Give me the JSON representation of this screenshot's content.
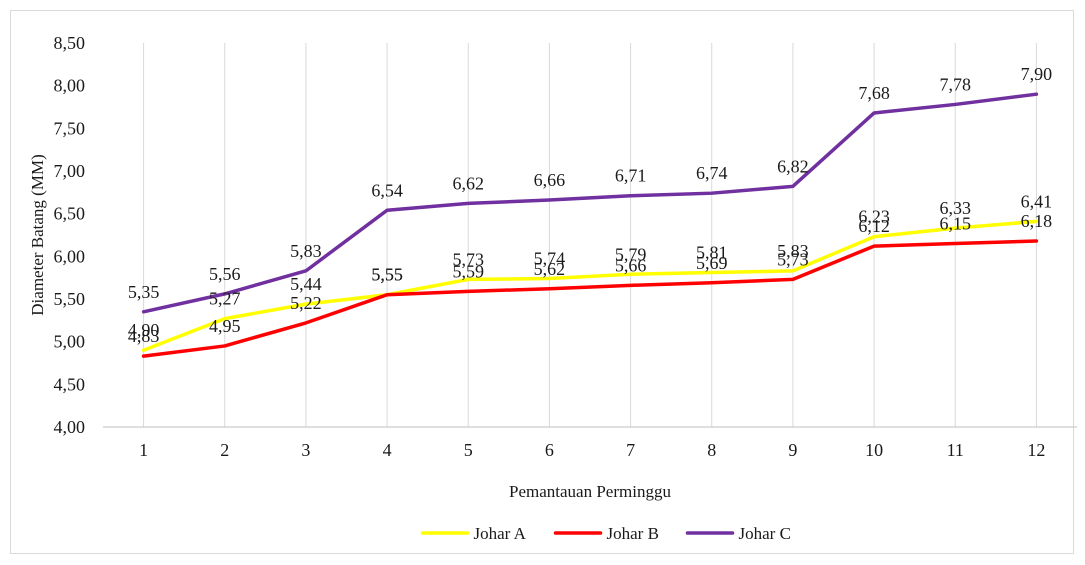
{
  "chart_data": {
    "type": "line",
    "title": "",
    "xlabel": "Pemantauan Perminggu",
    "ylabel": "Diameter Batang (MM)",
    "categories": [
      "1",
      "2",
      "3",
      "4",
      "5",
      "6",
      "7",
      "8",
      "9",
      "10",
      "11",
      "12"
    ],
    "ylim": [
      4.0,
      8.5
    ],
    "yticks": [
      "4,00",
      "4,50",
      "5,00",
      "5,50",
      "6,00",
      "6,50",
      "7,00",
      "7,50",
      "8,00",
      "8,50"
    ],
    "grid": "vertical",
    "legend_position": "bottom",
    "series": [
      {
        "name": "Johar A",
        "color": "#ffff00",
        "values": [
          4.9,
          5.27,
          5.44,
          5.55,
          5.73,
          5.74,
          5.79,
          5.81,
          5.83,
          6.23,
          6.33,
          6.41
        ],
        "labels": [
          "4,90",
          "5,27",
          "5,44",
          "5,55",
          "5,73",
          "5,74",
          "5,79",
          "5,81",
          "5,83",
          "6,23",
          "6,33",
          "6,41"
        ]
      },
      {
        "name": "Johar B",
        "color": "#ff0000",
        "values": [
          4.83,
          4.95,
          5.22,
          5.55,
          5.59,
          5.62,
          5.66,
          5.69,
          5.73,
          6.12,
          6.15,
          6.18
        ],
        "labels": [
          "4,83",
          "4,95",
          "5,22",
          "5,55",
          "5,59",
          "5,62",
          "5,66",
          "5,69",
          "5,73",
          "6,12",
          "6,15",
          "6,18"
        ]
      },
      {
        "name": "Johar C",
        "color": "#7030a0",
        "values": [
          5.35,
          5.56,
          5.83,
          6.54,
          6.62,
          6.66,
          6.71,
          6.74,
          6.82,
          7.68,
          7.78,
          7.9
        ],
        "labels": [
          "5,35",
          "5,56",
          "5,83",
          "6,54",
          "6,62",
          "6,66",
          "6,71",
          "6,74",
          "6,82",
          "7,68",
          "7,78",
          "7,90"
        ]
      }
    ]
  }
}
